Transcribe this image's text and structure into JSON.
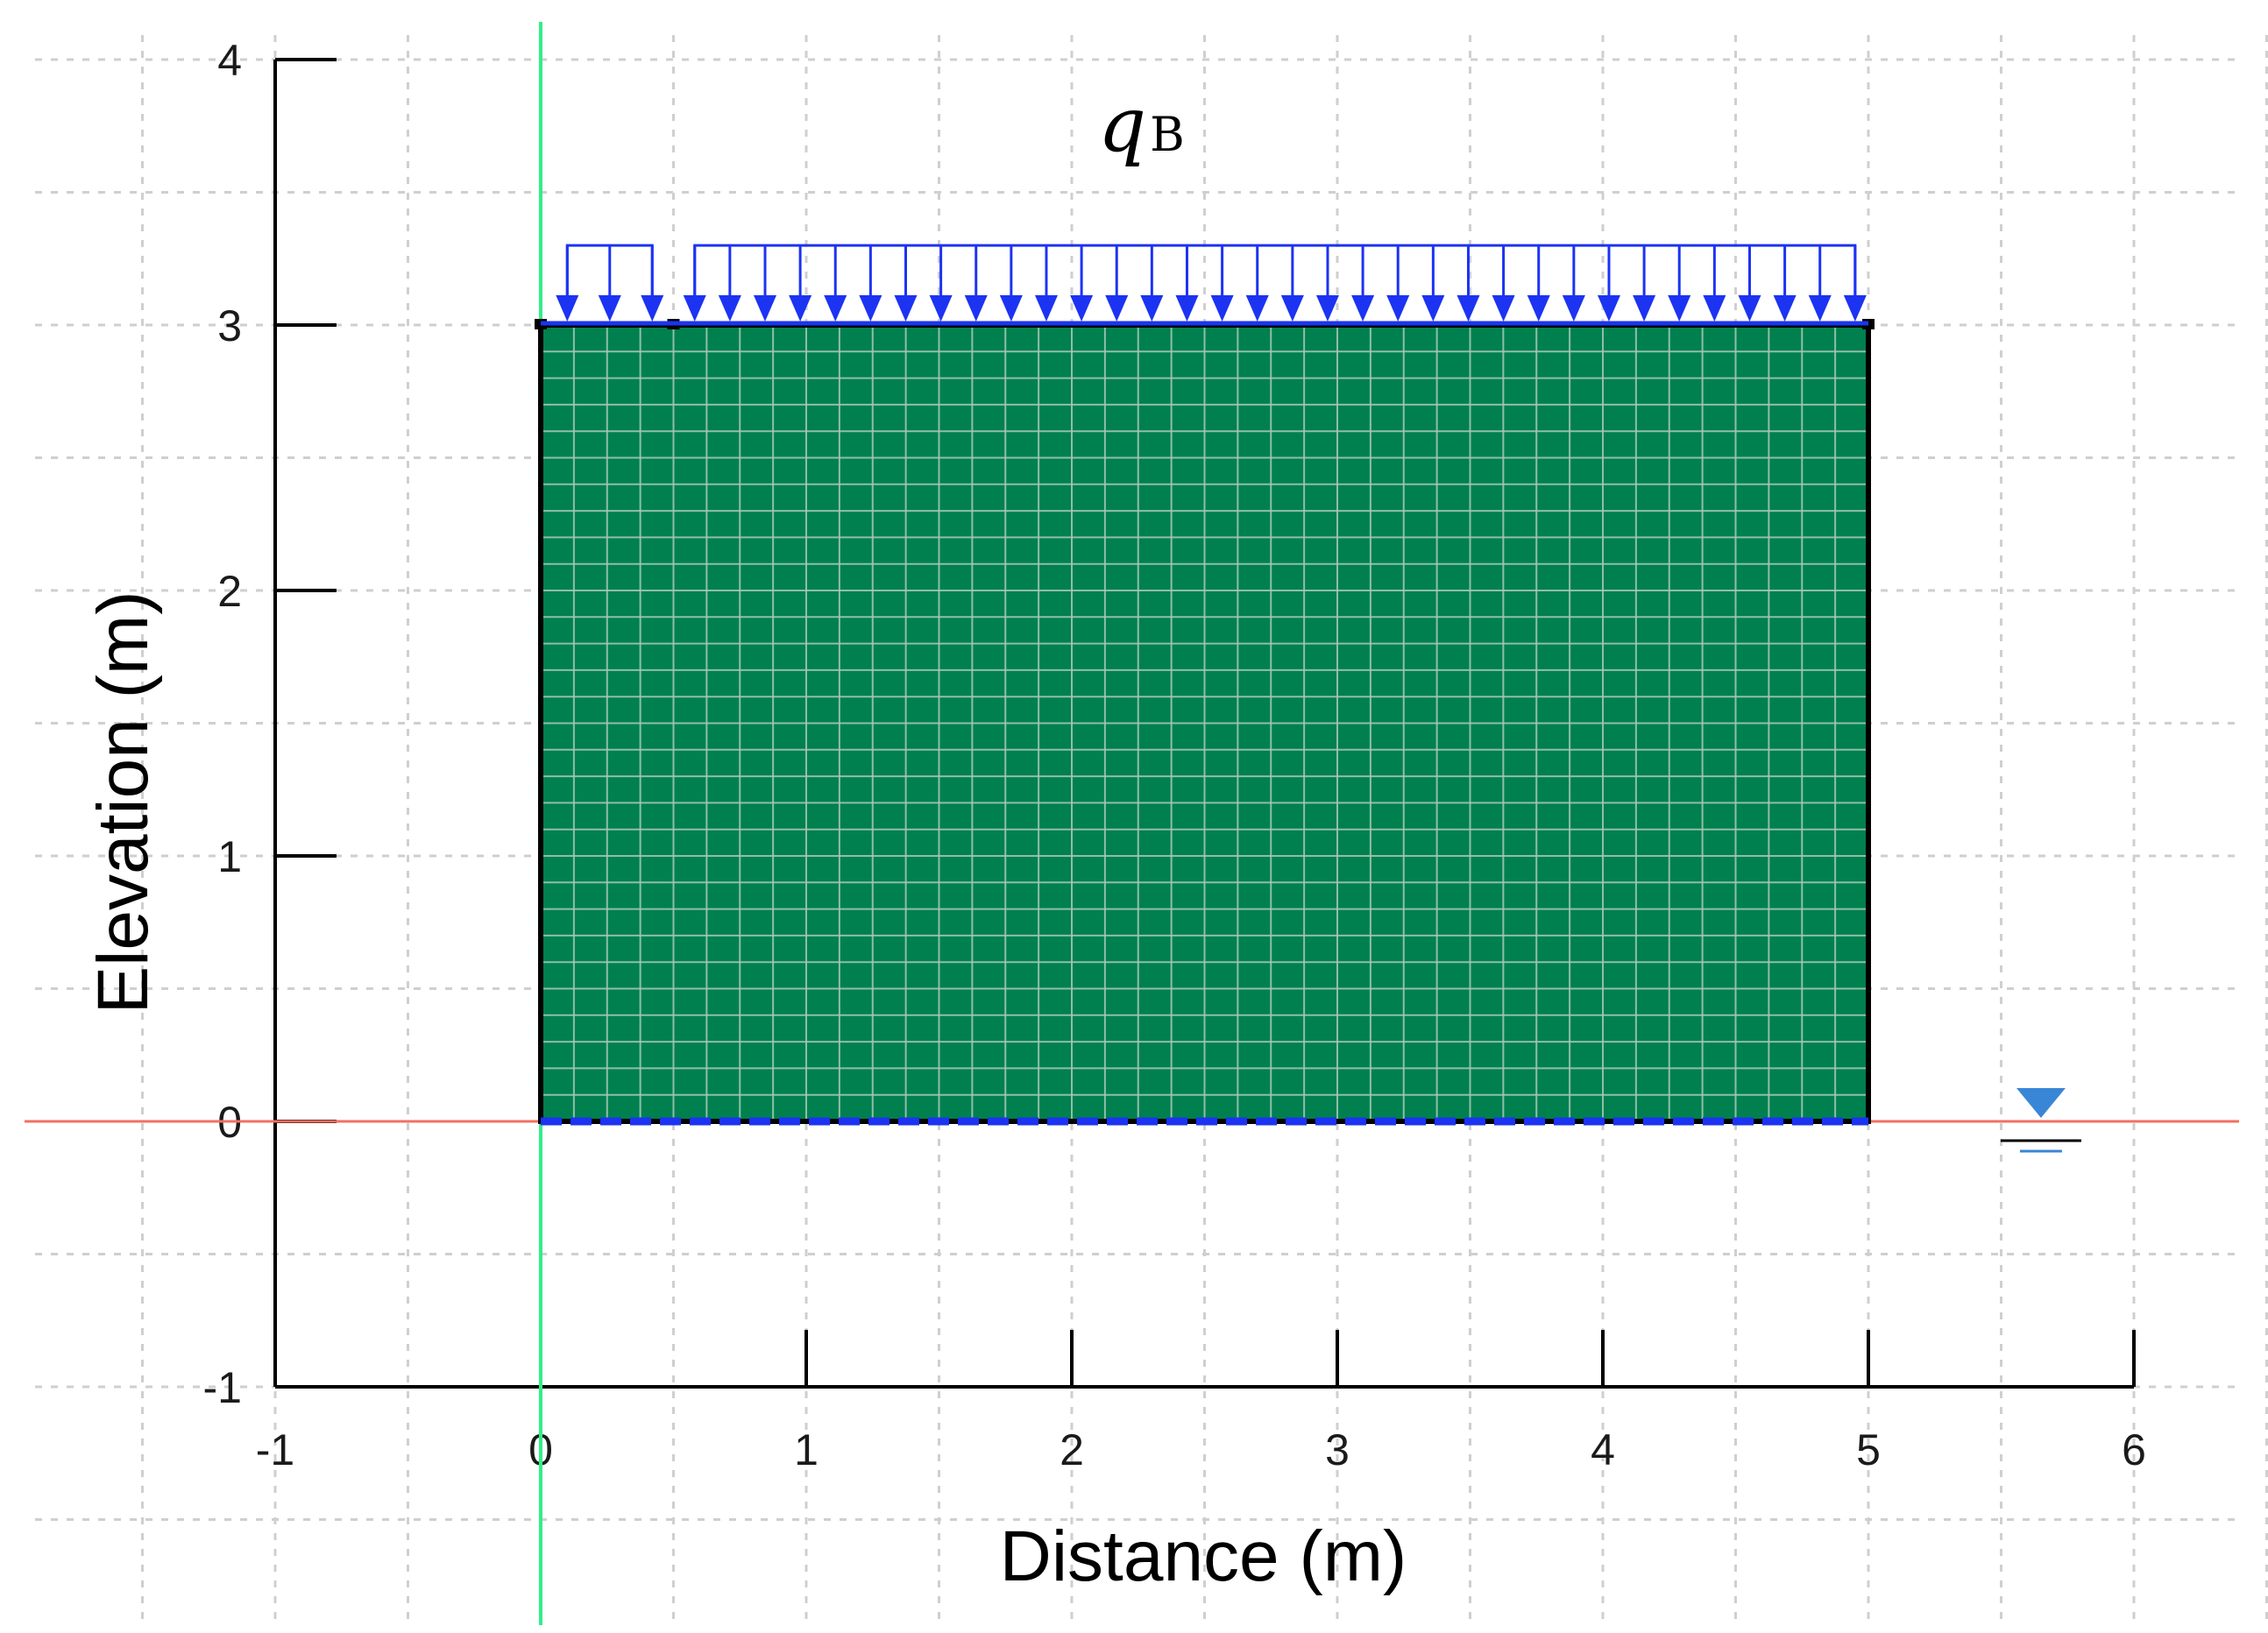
{
  "chart_data": {
    "type": "diagram",
    "xlabel": "Distance (m)",
    "ylabel": "Elevation (m)",
    "xlim": [
      -1,
      6
    ],
    "ylim": [
      -1,
      4
    ],
    "x_ticks": [
      -1,
      0,
      1,
      2,
      3,
      4,
      5,
      6
    ],
    "y_ticks": [
      -1,
      0,
      1,
      2,
      3,
      4
    ],
    "grid": true,
    "grid_spacing": 0.5,
    "region": {
      "x": [
        0,
        5
      ],
      "y": [
        0,
        3
      ],
      "color": "#00804f",
      "mesh_columns": 40,
      "mesh_rows": 30
    },
    "load": {
      "label": "q",
      "subscript": "B",
      "segments": [
        [
          0.1,
          0.42
        ],
        [
          0.58,
          4.95
        ]
      ],
      "top_y": 3.3,
      "arrow_count": 37,
      "color": "#1c33f2"
    },
    "bottom_boundary": {
      "y": 0,
      "x": [
        0,
        5
      ],
      "style": "dashed",
      "color": "#1c33f2"
    },
    "vertical_reference": {
      "x": 0,
      "color": "#33ee88"
    },
    "water_table": {
      "y": 0,
      "color": "#f36f62",
      "symbol_x": 5.65,
      "symbol_color": "#3a86d6"
    },
    "base_ticks_x": [
      0,
      1,
      2,
      3,
      4,
      5,
      6
    ]
  },
  "labels": {
    "x_ticks": [
      "-1",
      "0",
      "1",
      "2",
      "3",
      "4",
      "5",
      "6"
    ],
    "y_ticks": [
      "-1",
      "0",
      "1",
      "2",
      "3",
      "4"
    ],
    "xlabel": "Distance (m)",
    "ylabel": "Elevation (m)",
    "load_symbol": "q",
    "load_subscript": "B"
  }
}
